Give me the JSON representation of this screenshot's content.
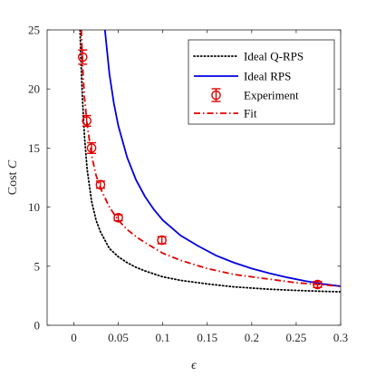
{
  "chart_data": {
    "type": "line",
    "xlabel": "ϵ",
    "ylabel_text": "Cost ",
    "ylabel_symbol": "C",
    "xlim": [
      -0.03,
      0.3
    ],
    "ylim": [
      0,
      25
    ],
    "xticks": [
      0,
      0.05,
      0.1,
      0.15,
      0.2,
      0.25,
      0.3
    ],
    "xtick_labels": [
      "0",
      "0.05",
      "0.1",
      "0.15",
      "0.2",
      "0.25",
      "0.3"
    ],
    "yticks": [
      0,
      5,
      10,
      15,
      20,
      25
    ],
    "ytick_labels": [
      "0",
      "5",
      "10",
      "15",
      "20",
      "25"
    ],
    "grid": false,
    "legend_position": "top-right",
    "series": [
      {
        "name": "Ideal Q-RPS",
        "style": "dotted",
        "color": "#000000",
        "x": [
          0.007,
          0.008,
          0.009,
          0.01,
          0.012,
          0.015,
          0.02,
          0.025,
          0.03,
          0.04,
          0.05,
          0.06,
          0.07,
          0.08,
          0.1,
          0.12,
          0.15,
          0.18,
          0.2,
          0.22,
          0.25,
          0.28,
          0.3
        ],
        "y": [
          25.0,
          22.5,
          20.5,
          18.8,
          16.0,
          13.2,
          10.5,
          8.9,
          7.9,
          6.5,
          5.8,
          5.3,
          4.9,
          4.6,
          4.1,
          3.8,
          3.5,
          3.25,
          3.15,
          3.05,
          2.95,
          2.87,
          2.83
        ]
      },
      {
        "name": "Ideal RPS",
        "style": "solid",
        "color": "#0000e0",
        "x": [
          0.035,
          0.04,
          0.045,
          0.05,
          0.06,
          0.07,
          0.08,
          0.09,
          0.1,
          0.12,
          0.14,
          0.16,
          0.18,
          0.2,
          0.22,
          0.24,
          0.26,
          0.28,
          0.3
        ],
        "y": [
          25.0,
          21.3,
          18.8,
          16.9,
          14.2,
          12.3,
          10.9,
          9.8,
          8.9,
          7.6,
          6.7,
          5.9,
          5.3,
          4.8,
          4.4,
          4.05,
          3.75,
          3.5,
          3.3
        ]
      },
      {
        "name": "Fit",
        "style": "dashdot",
        "color": "#e00000",
        "x": [
          0.0085,
          0.01,
          0.012,
          0.015,
          0.02,
          0.025,
          0.03,
          0.04,
          0.05,
          0.06,
          0.07,
          0.08,
          0.1,
          0.12,
          0.15,
          0.18,
          0.2,
          0.22,
          0.25,
          0.275,
          0.3
        ],
        "y": [
          25.0,
          21.8,
          19.3,
          17.0,
          14.4,
          12.7,
          11.6,
          10.0,
          8.9,
          8.1,
          7.5,
          7.0,
          6.1,
          5.5,
          4.8,
          4.3,
          4.1,
          3.9,
          3.6,
          3.45,
          3.3
        ]
      }
    ],
    "experiment": {
      "name": "Experiment",
      "color": "#e00000",
      "points": [
        {
          "x": 0.01,
          "y": 22.7,
          "err": 0.6
        },
        {
          "x": 0.0145,
          "y": 17.3,
          "err": 0.45
        },
        {
          "x": 0.02,
          "y": 15.0,
          "err": 0.45
        },
        {
          "x": 0.03,
          "y": 11.9,
          "err": 0.3
        },
        {
          "x": 0.05,
          "y": 9.1,
          "err": 0.25
        },
        {
          "x": 0.099,
          "y": 7.2,
          "err": 0.3
        },
        {
          "x": 0.274,
          "y": 3.45,
          "err": 0.25
        }
      ]
    }
  }
}
